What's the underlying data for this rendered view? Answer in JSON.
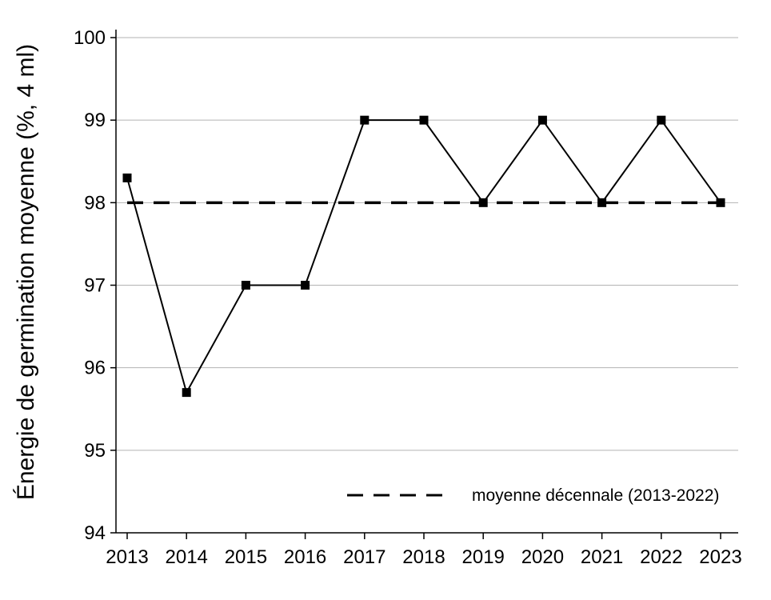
{
  "chart_data": {
    "type": "line",
    "title": "",
    "xlabel": "",
    "ylabel": "Énergie de germination moyenne (%, 4 ml)",
    "categories": [
      "2013",
      "2014",
      "2015",
      "2016",
      "2017",
      "2018",
      "2019",
      "2020",
      "2021",
      "2022",
      "2023"
    ],
    "series": [
      {
        "values": [
          98.3,
          95.7,
          97,
          97,
          99,
          99,
          98,
          99,
          98,
          99,
          98
        ],
        "color": "#000000",
        "marker": "square",
        "line_style": "solid"
      },
      {
        "name": "moyenne décennale (2013-2022)",
        "values": [
          98,
          98,
          98,
          98,
          98,
          98,
          98,
          98,
          98,
          98,
          98
        ],
        "color": "#000000",
        "line_style": "dashed"
      }
    ],
    "ylim": [
      94,
      100
    ],
    "yticks": [
      "94",
      "95",
      "96",
      "97",
      "98",
      "99",
      "100"
    ],
    "grid": "horizontal",
    "grid_color": "#b3b3b3",
    "legend_position": "bottom-right"
  }
}
